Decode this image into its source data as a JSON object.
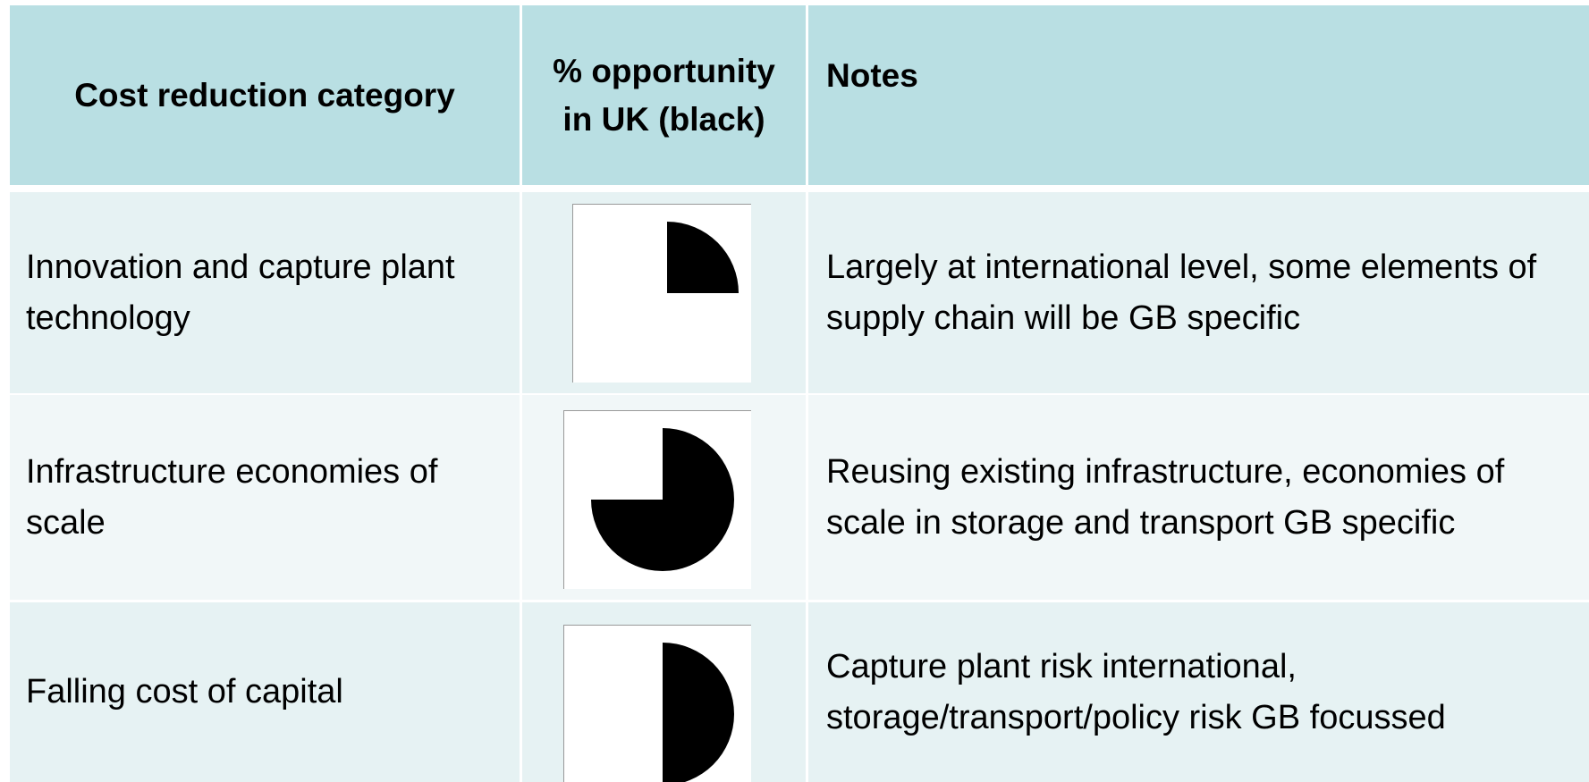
{
  "table": {
    "headers": [
      "Cost reduction category",
      "% opportunity in UK (black)",
      "Notes"
    ],
    "rows": [
      {
        "category": "Innovation and capture plant technology",
        "opportunity": 25,
        "notes": "Largely at international level, some elements of supply chain will be GB specific"
      },
      {
        "category": "Infrastructure economies of scale",
        "opportunity": 75,
        "notes": "Reusing existing infrastructure, economies of scale in storage and transport GB specific"
      },
      {
        "category": "Falling cost of capital",
        "opportunity": 50,
        "notes": "Capture plant risk international, storage/transport/policy risk GB focussed"
      }
    ]
  }
}
